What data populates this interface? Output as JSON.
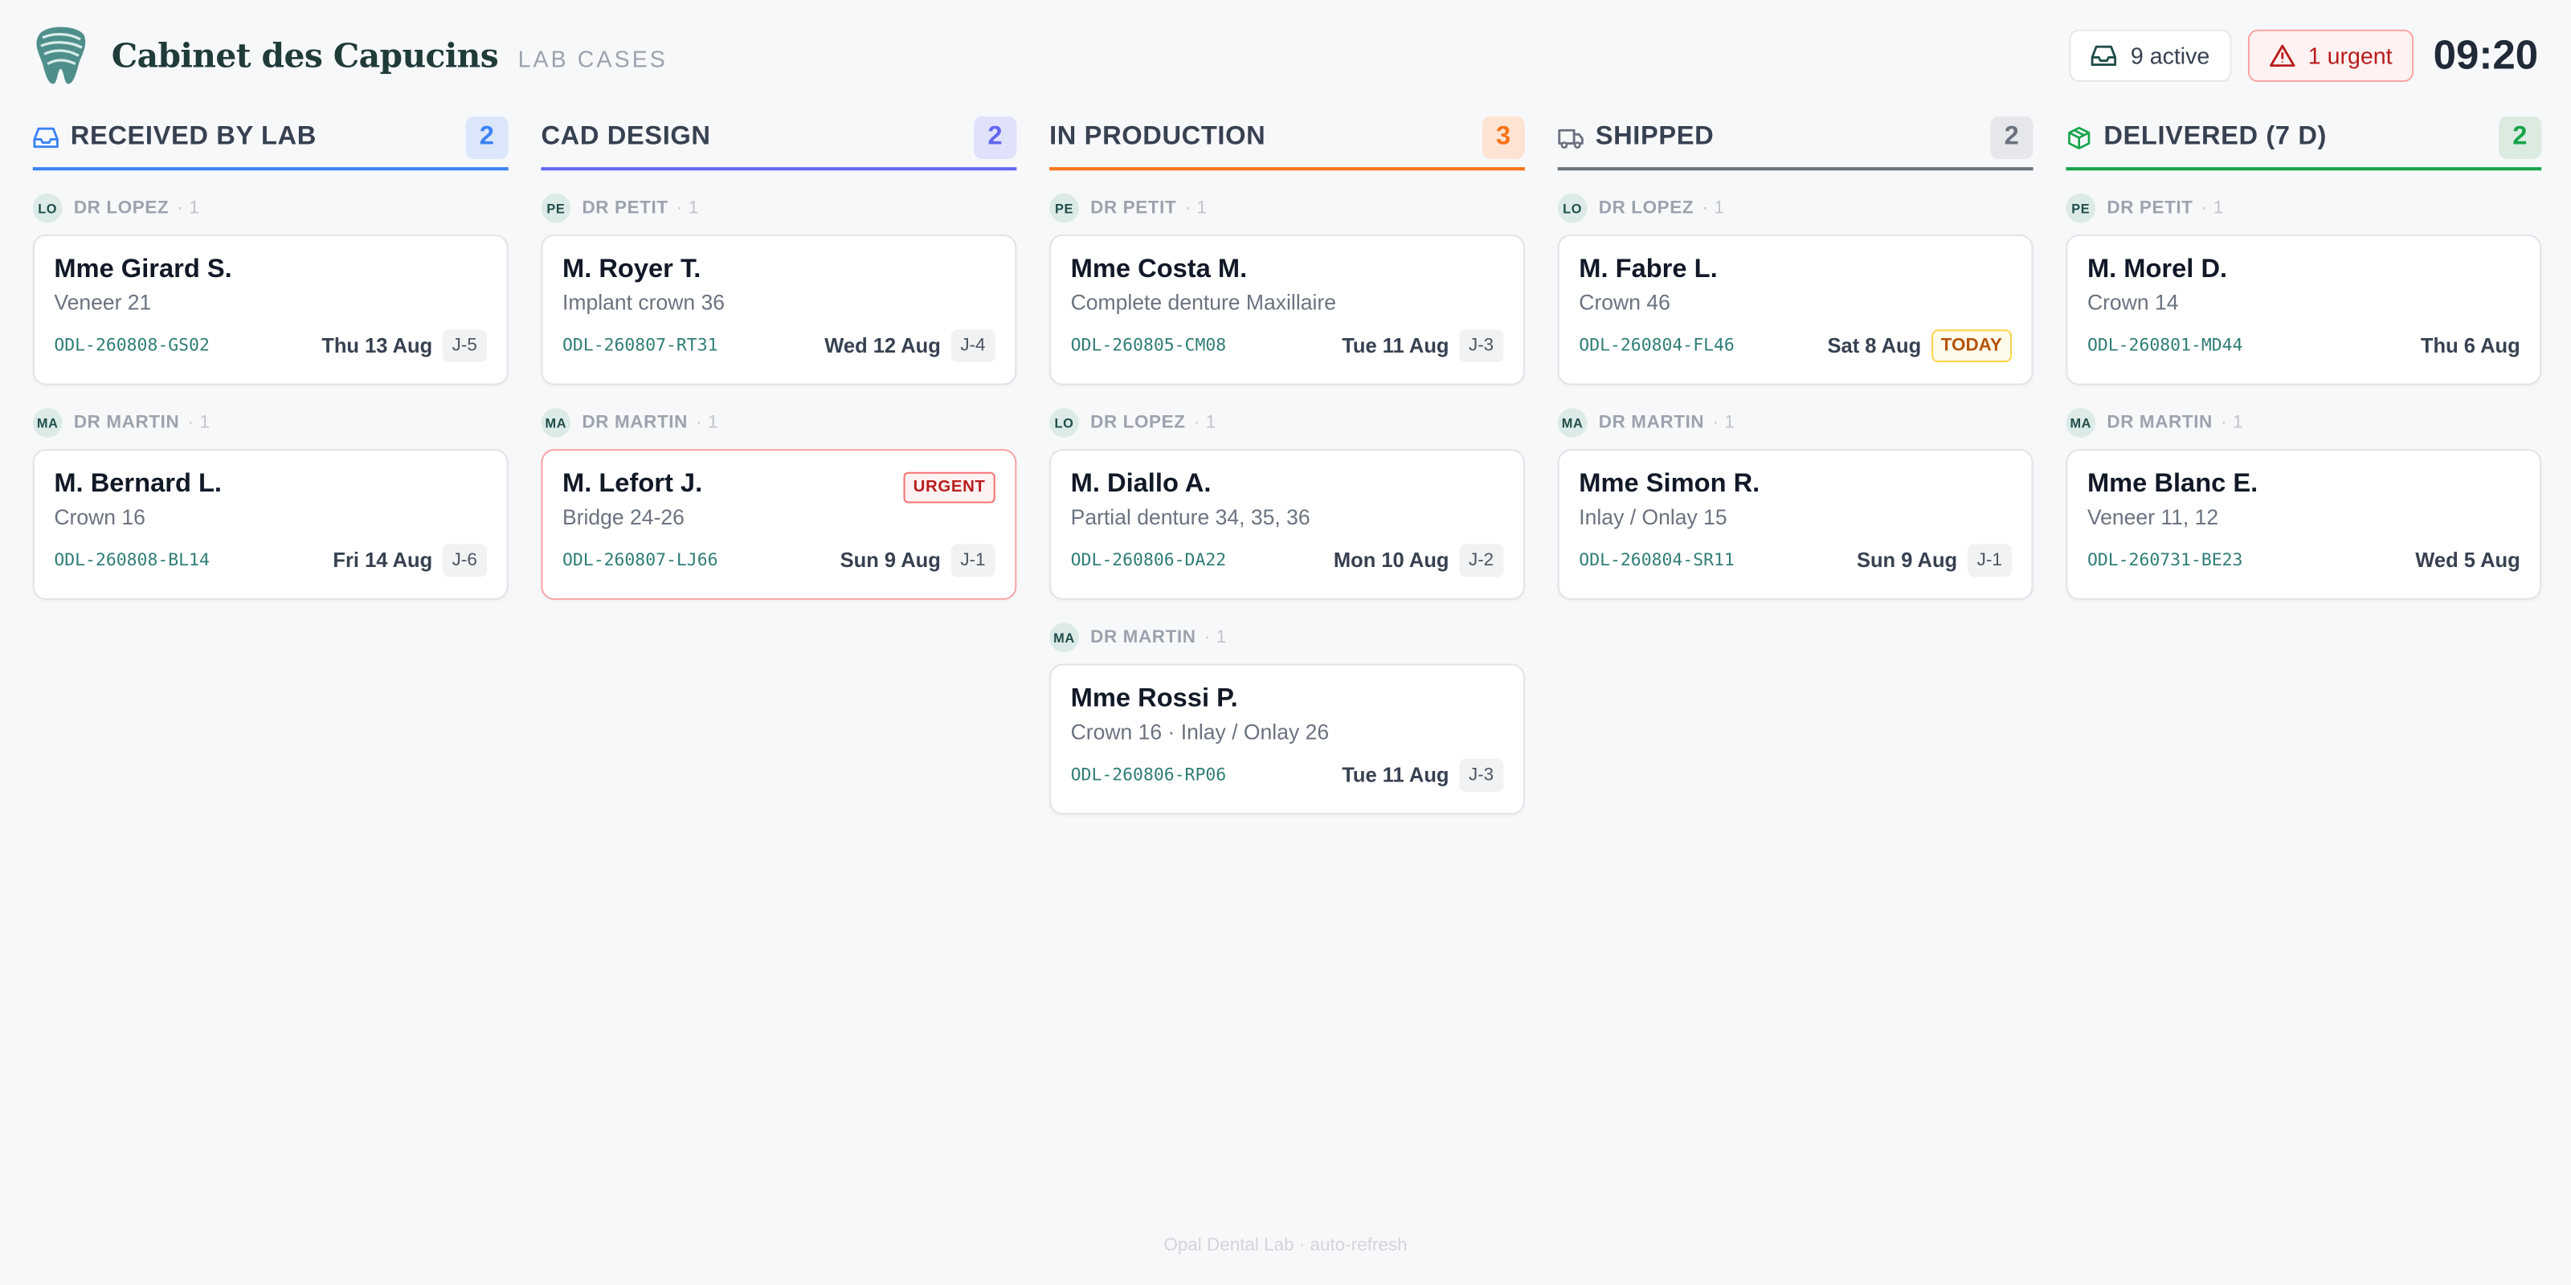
{
  "header": {
    "title": "Cabinet des Capucins",
    "subtitle": "LAB CASES",
    "active": "9 active",
    "urgent": "1 urgent",
    "time": "09:20"
  },
  "columns": [
    {
      "title": "RECEIVED BY LAB",
      "count": 2,
      "groups": [
        {
          "initials": "LO",
          "doctor": "DR LOPEZ",
          "count": 1,
          "cards": [
            {
              "name": "Mme Girard S.",
              "desc": "Veneer 21",
              "ref": "ODL-260808-GS02",
              "date": "Thu 13 Aug",
              "badge": "J-5"
            }
          ]
        },
        {
          "initials": "MA",
          "doctor": "DR MARTIN",
          "count": 1,
          "cards": [
            {
              "name": "M. Bernard L.",
              "desc": "Crown 16",
              "ref": "ODL-260808-BL14",
              "date": "Fri 14 Aug",
              "badge": "J-6"
            }
          ]
        }
      ]
    },
    {
      "title": "CAD DESIGN",
      "count": 2,
      "groups": [
        {
          "initials": "PE",
          "doctor": "DR PETIT",
          "count": 1,
          "cards": [
            {
              "name": "M. Royer T.",
              "desc": "Implant crown 36",
              "ref": "ODL-260807-RT31",
              "date": "Wed 12 Aug",
              "badge": "J-4"
            }
          ]
        },
        {
          "initials": "MA",
          "doctor": "DR MARTIN",
          "count": 1,
          "cards": [
            {
              "name": "M. Lefort J.",
              "desc": "Bridge 24-26",
              "ref": "ODL-260807-LJ66",
              "date": "Sun 9 Aug",
              "badge": "J-1",
              "tag": "URGENT"
            }
          ]
        }
      ]
    },
    {
      "title": "IN PRODUCTION",
      "count": 3,
      "groups": [
        {
          "initials": "PE",
          "doctor": "DR PETIT",
          "count": 1,
          "cards": [
            {
              "name": "Mme Costa M.",
              "desc": "Complete denture Maxillaire",
              "ref": "ODL-260805-CM08",
              "date": "Tue 11 Aug",
              "badge": "J-3"
            }
          ]
        },
        {
          "initials": "LO",
          "doctor": "DR LOPEZ",
          "count": 1,
          "cards": [
            {
              "name": "M. Diallo A.",
              "desc": "Partial denture 34, 35, 36",
              "ref": "ODL-260806-DA22",
              "date": "Mon 10 Aug",
              "badge": "J-2"
            }
          ]
        },
        {
          "initials": "MA",
          "doctor": "DR MARTIN",
          "count": 1,
          "cards": [
            {
              "name": "Mme Rossi P.",
              "desc": "Crown 16 · Inlay / Onlay 26",
              "ref": "ODL-260806-RP06",
              "date": "Tue 11 Aug",
              "badge": "J-3"
            }
          ]
        }
      ]
    },
    {
      "title": "SHIPPED",
      "count": 2,
      "groups": [
        {
          "initials": "LO",
          "doctor": "DR LOPEZ",
          "count": 1,
          "cards": [
            {
              "name": "M. Fabre L.",
              "desc": "Crown 46",
              "ref": "ODL-260804-FL46",
              "date": "Sat 8 Aug",
              "today": "TODAY"
            }
          ]
        },
        {
          "initials": "MA",
          "doctor": "DR MARTIN",
          "count": 1,
          "cards": [
            {
              "name": "Mme Simon R.",
              "desc": "Inlay / Onlay 15",
              "ref": "ODL-260804-SR11",
              "date": "Sun 9 Aug",
              "badge": "J-1"
            }
          ]
        }
      ]
    },
    {
      "title": "DELIVERED (7 D)",
      "count": 2,
      "groups": [
        {
          "initials": "PE",
          "doctor": "DR PETIT",
          "count": 1,
          "cards": [
            {
              "name": "M. Morel D.",
              "desc": "Crown 14",
              "ref": "ODL-260801-MD44",
              "date": "Thu 6 Aug"
            }
          ]
        },
        {
          "initials": "MA",
          "doctor": "DR MARTIN",
          "count": 1,
          "cards": [
            {
              "name": "Mme Blanc E.",
              "desc": "Veneer 11, 12",
              "ref": "ODL-260731-BE23",
              "date": "Wed 5 Aug"
            }
          ]
        }
      ]
    }
  ],
  "footer": "Opal Dental Lab · auto-refresh"
}
